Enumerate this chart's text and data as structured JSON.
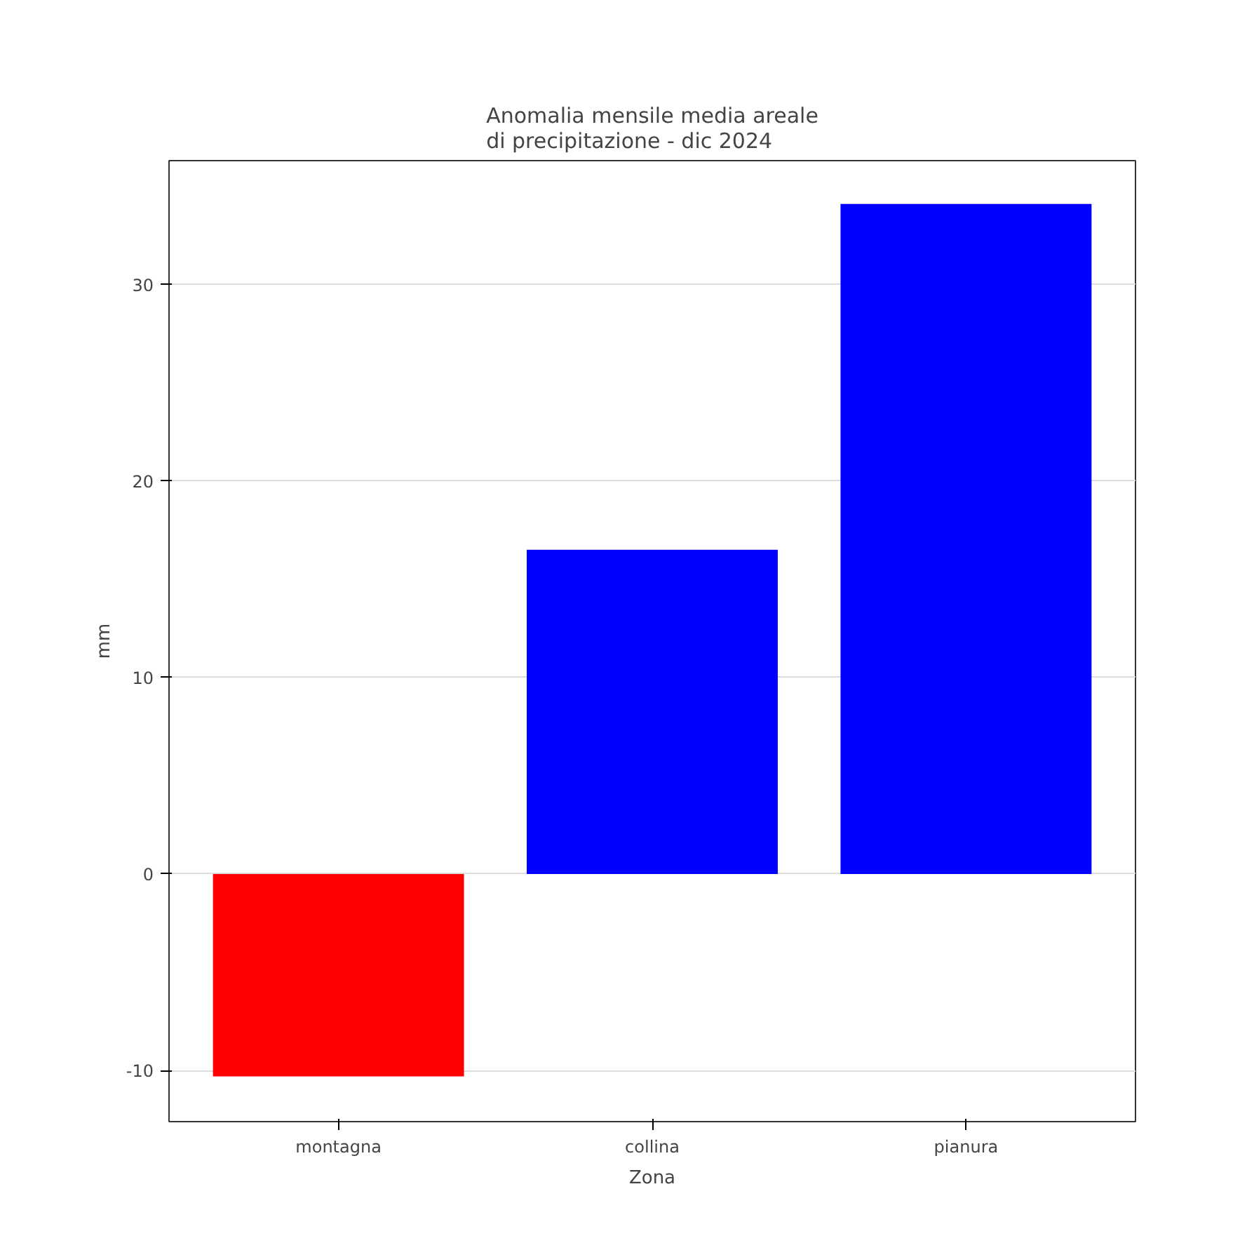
{
  "chart_data": {
    "type": "bar",
    "title": "Anomalia mensile media areale\ndi precipitazione - dic 2024",
    "xlabel": "Zona",
    "ylabel": "mm",
    "categories": [
      "montagna",
      "collina",
      "pianura"
    ],
    "values": [
      -10.3,
      16.5,
      34.1
    ],
    "colors": [
      "#ff0000",
      "#0000ff",
      "#0000ff"
    ],
    "ylim": [
      -12.6,
      36.3
    ],
    "yticks": [
      -10,
      0,
      10,
      20,
      30
    ],
    "grid": "y"
  }
}
